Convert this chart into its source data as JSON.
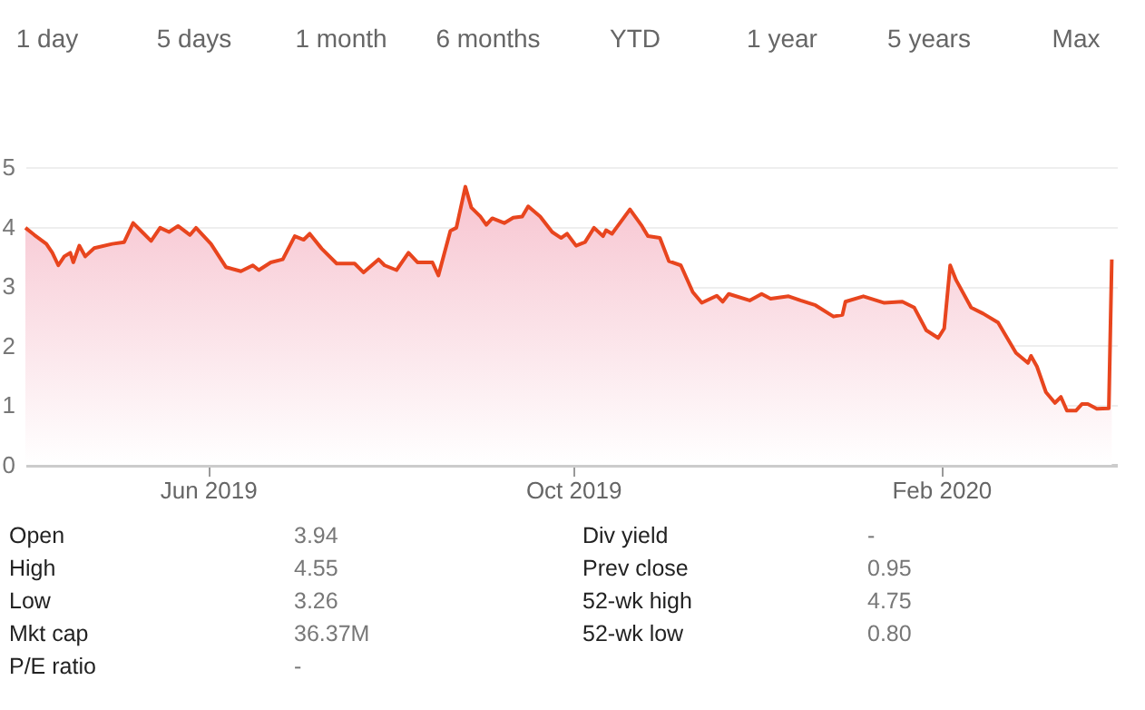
{
  "chart_data": {
    "type": "area",
    "x": [
      "2019-04-01",
      "2019-04-04",
      "2019-04-08",
      "2019-04-10",
      "2019-04-12",
      "2019-04-14",
      "2019-04-16",
      "2019-04-17",
      "2019-04-19",
      "2019-04-21",
      "2019-04-24",
      "2019-04-30",
      "2019-05-04",
      "2019-05-07",
      "2019-05-10",
      "2019-05-13",
      "2019-05-16",
      "2019-05-19",
      "2019-05-22",
      "2019-05-26",
      "2019-05-28",
      "2019-06-02",
      "2019-06-07",
      "2019-06-12",
      "2019-06-16",
      "2019-06-18",
      "2019-06-22",
      "2019-06-26",
      "2019-06-30",
      "2019-07-03",
      "2019-07-05",
      "2019-07-09",
      "2019-07-14",
      "2019-07-20",
      "2019-07-23",
      "2019-07-28",
      "2019-07-30",
      "2019-08-03",
      "2019-08-07",
      "2019-08-10",
      "2019-08-15",
      "2019-08-17",
      "2019-08-21",
      "2019-08-23",
      "2019-08-26",
      "2019-08-28",
      "2019-08-31",
      "2019-09-02",
      "2019-09-04",
      "2019-09-08",
      "2019-09-11",
      "2019-09-14",
      "2019-09-16",
      "2019-09-20",
      "2019-09-24",
      "2019-09-27",
      "2019-09-29",
      "2019-10-02",
      "2019-10-05",
      "2019-10-08",
      "2019-10-11",
      "2019-10-12",
      "2019-10-14",
      "2019-10-20",
      "2019-10-24",
      "2019-10-26",
      "2019-10-30",
      "2019-11-02",
      "2019-11-06",
      "2019-11-10",
      "2019-11-13",
      "2019-11-18",
      "2019-11-20",
      "2019-11-22",
      "2019-11-29",
      "2019-12-03",
      "2019-12-06",
      "2019-12-12",
      "2019-12-16",
      "2019-12-21",
      "2019-12-27",
      "2019-12-30",
      "2019-12-31",
      "2020-01-06",
      "2020-01-13",
      "2020-01-19",
      "2020-01-23",
      "2020-01-27",
      "2020-01-31",
      "2020-02-02",
      "2020-02-04",
      "2020-02-06",
      "2020-02-11",
      "2020-02-15",
      "2020-02-20",
      "2020-02-26",
      "2020-03-01",
      "2020-03-02",
      "2020-03-04",
      "2020-03-07",
      "2020-03-10",
      "2020-03-12",
      "2020-03-14",
      "2020-03-17",
      "2020-03-19",
      "2020-03-21",
      "2020-03-24",
      "2020-03-28",
      "2020-03-29"
    ],
    "series": [
      {
        "color": "#e8451e",
        "values": [
          3.98,
          3.86,
          3.71,
          3.56,
          3.35,
          3.5,
          3.56,
          3.4,
          3.68,
          3.5,
          3.64,
          3.71,
          3.74,
          4.06,
          3.91,
          3.76,
          3.98,
          3.91,
          4.01,
          3.86,
          3.98,
          3.71,
          3.32,
          3.25,
          3.35,
          3.27,
          3.4,
          3.45,
          3.84,
          3.78,
          3.88,
          3.63,
          3.38,
          3.38,
          3.23,
          3.45,
          3.35,
          3.27,
          3.56,
          3.4,
          3.4,
          3.18,
          3.93,
          3.98,
          4.67,
          4.32,
          4.17,
          4.03,
          4.14,
          4.06,
          4.15,
          4.17,
          4.34,
          4.17,
          3.91,
          3.81,
          3.88,
          3.68,
          3.74,
          3.98,
          3.84,
          3.94,
          3.88,
          4.29,
          4.01,
          3.84,
          3.81,
          3.42,
          3.35,
          2.9,
          2.72,
          2.84,
          2.74,
          2.87,
          2.76,
          2.87,
          2.79,
          2.83,
          2.76,
          2.68,
          2.49,
          2.52,
          2.74,
          2.83,
          2.72,
          2.74,
          2.64,
          2.26,
          2.13,
          2.29,
          3.35,
          3.1,
          2.64,
          2.54,
          2.39,
          1.88,
          1.71,
          1.83,
          1.65,
          1.22,
          1.04,
          1.14,
          0.91,
          0.91,
          1.02,
          1.02,
          0.94,
          0.95,
          3.45
        ]
      }
    ],
    "xlim": [
      "2019-04-01",
      "2020-03-31"
    ],
    "xticks": [
      {
        "value": "2019-06-01",
        "label": "Jun 2019"
      },
      {
        "value": "2019-10-01",
        "label": "Oct 2019"
      },
      {
        "value": "2020-02-01",
        "label": "Feb 2020"
      }
    ],
    "ylim": [
      0,
      5
    ],
    "yticks": [
      0,
      1,
      2,
      3,
      4,
      5
    ],
    "grid": "y",
    "annotations": [
      "1 day",
      "5 days",
      "1 month",
      "6 months",
      "YTD",
      "1 year",
      "5 years",
      "Max",
      "Open",
      "3.94",
      "Div yield",
      "-",
      "High",
      "4.55",
      "Prev close",
      "0.95",
      "Low",
      "3.26",
      "52-wk high",
      "4.75",
      "Mkt cap",
      "36.37M",
      "52-wk low",
      "0.80",
      "P/E ratio",
      "-"
    ]
  }
}
